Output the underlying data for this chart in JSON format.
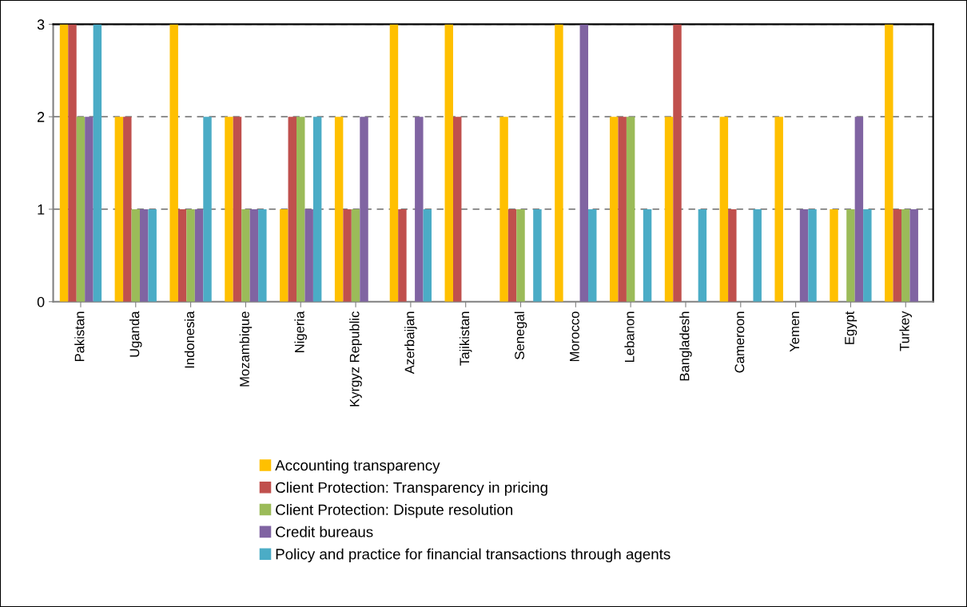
{
  "chart_data": {
    "type": "bar",
    "categories": [
      "Pakistan",
      "Uganda",
      "Indonesia",
      "Mozambique",
      "Nigeria",
      "Kyrgyz Republic",
      "Azerbaijan",
      "Tajikistan",
      "Senegal",
      "Morocco",
      "Lebanon",
      "Bangladesh",
      "Cameroon",
      "Yemen",
      "Egypt",
      "Turkey"
    ],
    "series": [
      {
        "name": "Accounting transparency",
        "color": "#ffc000",
        "values": [
          3,
          2,
          3,
          2,
          1,
          2,
          3,
          3,
          2,
          3,
          2,
          2,
          2,
          2,
          1,
          3
        ]
      },
      {
        "name": "Client Protection: Transparency in pricing",
        "color": "#c0504d",
        "values": [
          3,
          2,
          1,
          2,
          2,
          1,
          1,
          2,
          1,
          0,
          2,
          3,
          1,
          0,
          0,
          1
        ]
      },
      {
        "name": "Client Protection: Dispute resolution",
        "color": "#9bbb59",
        "values": [
          2,
          1,
          1,
          1,
          2,
          1,
          0,
          0,
          1,
          0,
          2,
          0,
          0,
          0,
          1,
          1
        ]
      },
      {
        "name": "Credit bureaus",
        "color": "#8064a2",
        "values": [
          2,
          1,
          1,
          1,
          1,
          2,
          2,
          0,
          0,
          3,
          0,
          0,
          0,
          1,
          2,
          1
        ]
      },
      {
        "name": "Policy and practice for financial transactions through agents",
        "color": "#4bacc6",
        "values": [
          3,
          1,
          2,
          1,
          2,
          0,
          1,
          0,
          1,
          1,
          1,
          1,
          1,
          1,
          1,
          0
        ]
      }
    ],
    "ylim": [
      0,
      3
    ],
    "yticks": [
      0,
      1,
      2,
      3
    ],
    "grid": "y",
    "legend": "bottom"
  }
}
